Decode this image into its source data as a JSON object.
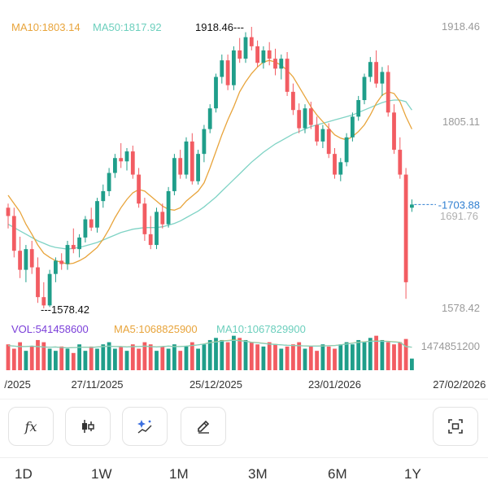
{
  "chart_data": {
    "type": "candlestick",
    "price_range": [
      1578.42,
      1918.46
    ],
    "y_tick_labels": [
      "1918.46",
      "1805.11",
      "1691.76",
      "1578.42"
    ],
    "y_ticks": [
      1918.46,
      1805.11,
      1691.76,
      1578.42
    ],
    "x_tick_labels": [
      "/2025",
      "27/11/2025",
      "25/12/2025",
      "23/01/2026",
      "27/02/2026"
    ],
    "x_tick_index": [
      1,
      15,
      35,
      55,
      76
    ],
    "high_label": "1918.46---",
    "low_label": "---1578.42",
    "last_price_label": "-1703.88",
    "last_price": 1703.88,
    "ma_legend": {
      "ma10": "MA10:1803.14",
      "ma50": "MA50:1817.92"
    },
    "volume_legend": {
      "vol": "VOL:541458600",
      "ma5": "MA5:1068825900",
      "ma10": "MA10:1067829900"
    },
    "volume_axis_label": "1474851200",
    "colors": {
      "up": "#1f9e8a",
      "down": "#f25c62",
      "ma10": "#e8a43b",
      "ma50": "#7fd3c5",
      "vol_legend": "#7b3fd9",
      "axis_text": "#9a9a9a"
    },
    "candles": [
      [
        1700,
        1705,
        1675,
        1690
      ],
      [
        1690,
        1700,
        1640,
        1648
      ],
      [
        1648,
        1665,
        1615,
        1625
      ],
      [
        1625,
        1655,
        1610,
        1650
      ],
      [
        1650,
        1660,
        1620,
        1628
      ],
      [
        1628,
        1640,
        1585,
        1592
      ],
      [
        1592,
        1610,
        1578.42,
        1582
      ],
      [
        1582,
        1625,
        1580,
        1620
      ],
      [
        1620,
        1640,
        1610,
        1636
      ],
      [
        1636,
        1645,
        1625,
        1632
      ],
      [
        1632,
        1660,
        1625,
        1655
      ],
      [
        1655,
        1675,
        1645,
        1650
      ],
      [
        1650,
        1668,
        1640,
        1664
      ],
      [
        1664,
        1690,
        1658,
        1686
      ],
      [
        1686,
        1700,
        1672,
        1676
      ],
      [
        1676,
        1712,
        1670,
        1708
      ],
      [
        1708,
        1728,
        1700,
        1720
      ],
      [
        1720,
        1748,
        1714,
        1742
      ],
      [
        1742,
        1765,
        1736,
        1760
      ],
      [
        1760,
        1778,
        1748,
        1756
      ],
      [
        1756,
        1772,
        1745,
        1768
      ],
      [
        1768,
        1775,
        1735,
        1740
      ],
      [
        1740,
        1748,
        1700,
        1705
      ],
      [
        1705,
        1712,
        1660,
        1668
      ],
      [
        1668,
        1690,
        1650,
        1655
      ],
      [
        1655,
        1700,
        1650,
        1695
      ],
      [
        1695,
        1705,
        1675,
        1680
      ],
      [
        1680,
        1725,
        1676,
        1720
      ],
      [
        1720,
        1765,
        1715,
        1760
      ],
      [
        1760,
        1770,
        1735,
        1740
      ],
      [
        1740,
        1785,
        1735,
        1780
      ],
      [
        1780,
        1790,
        1728,
        1732
      ],
      [
        1732,
        1770,
        1728,
        1765
      ],
      [
        1765,
        1800,
        1755,
        1795
      ],
      [
        1795,
        1825,
        1790,
        1820
      ],
      [
        1820,
        1862,
        1815,
        1858
      ],
      [
        1858,
        1885,
        1850,
        1878
      ],
      [
        1878,
        1885,
        1842,
        1848
      ],
      [
        1848,
        1895,
        1842,
        1890
      ],
      [
        1890,
        1905,
        1875,
        1880
      ],
      [
        1880,
        1912,
        1875,
        1906
      ],
      [
        1906,
        1918.46,
        1890,
        1895
      ],
      [
        1895,
        1902,
        1870,
        1875
      ],
      [
        1875,
        1895,
        1868,
        1890
      ],
      [
        1890,
        1900,
        1872,
        1880
      ],
      [
        1880,
        1892,
        1860,
        1868
      ],
      [
        1868,
        1885,
        1855,
        1880
      ],
      [
        1880,
        1888,
        1835,
        1840
      ],
      [
        1840,
        1850,
        1812,
        1818
      ],
      [
        1818,
        1826,
        1790,
        1796
      ],
      [
        1796,
        1825,
        1790,
        1820
      ],
      [
        1820,
        1828,
        1795,
        1800
      ],
      [
        1800,
        1810,
        1775,
        1780
      ],
      [
        1780,
        1800,
        1772,
        1795
      ],
      [
        1795,
        1802,
        1760,
        1765
      ],
      [
        1765,
        1772,
        1735,
        1740
      ],
      [
        1740,
        1760,
        1732,
        1755
      ],
      [
        1755,
        1790,
        1750,
        1785
      ],
      [
        1785,
        1815,
        1780,
        1810
      ],
      [
        1810,
        1835,
        1805,
        1830
      ],
      [
        1830,
        1862,
        1825,
        1858
      ],
      [
        1858,
        1882,
        1852,
        1876
      ],
      [
        1876,
        1890,
        1845,
        1850
      ],
      [
        1850,
        1870,
        1835,
        1864
      ],
      [
        1864,
        1872,
        1810,
        1815
      ],
      [
        1815,
        1825,
        1765,
        1770
      ],
      [
        1770,
        1785,
        1735,
        1740
      ],
      [
        1740,
        1748,
        1590,
        1610
      ],
      [
        1700,
        1710,
        1695,
        1703.88
      ]
    ],
    "ma10": [
      1715,
      1705,
      1695,
      1680,
      1668,
      1655,
      1645,
      1640,
      1636,
      1634,
      1632,
      1633,
      1636,
      1640,
      1646,
      1652,
      1662,
      1674,
      1688,
      1700,
      1710,
      1718,
      1722,
      1720,
      1714,
      1708,
      1702,
      1698,
      1697,
      1700,
      1708,
      1714,
      1720,
      1730,
      1748,
      1768,
      1788,
      1806,
      1822,
      1840,
      1852,
      1862,
      1870,
      1876,
      1878,
      1876,
      1872,
      1866,
      1858,
      1846,
      1834,
      1822,
      1812,
      1804,
      1796,
      1788,
      1784,
      1782,
      1786,
      1792,
      1800,
      1812,
      1826,
      1836,
      1840,
      1838,
      1828,
      1810,
      1795
    ],
    "ma50": [
      1680,
      1676,
      1672,
      1668,
      1664,
      1660,
      1657,
      1654,
      1652,
      1651,
      1650,
      1651,
      1652,
      1654,
      1656,
      1658,
      1661,
      1664,
      1667,
      1670,
      1672,
      1674,
      1675,
      1676,
      1676,
      1676,
      1677,
      1679,
      1681,
      1684,
      1688,
      1692,
      1696,
      1701,
      1707,
      1713,
      1720,
      1727,
      1734,
      1741,
      1748,
      1755,
      1761,
      1767,
      1772,
      1777,
      1781,
      1785,
      1789,
      1792,
      1795,
      1798,
      1800,
      1802,
      1804,
      1806,
      1808,
      1810,
      1812,
      1815,
      1818,
      1821,
      1824,
      1827,
      1829,
      1830,
      1830,
      1828,
      1817.92
    ],
    "volumes": [
      1.2,
      1.0,
      1.3,
      0.9,
      1.1,
      1.4,
      1.3,
      1.0,
      0.9,
      1.1,
      1.0,
      0.8,
      1.2,
      0.9,
      1.1,
      1.0,
      1.2,
      1.3,
      1.0,
      1.1,
      0.9,
      1.2,
      1.0,
      1.3,
      1.2,
      0.9,
      1.1,
      1.0,
      1.2,
      0.9,
      1.1,
      1.3,
      1.0,
      1.2,
      1.4,
      1.5,
      1.4,
      1.3,
      1.6,
      1.5,
      1.4,
      1.3,
      1.2,
      1.1,
      1.3,
      1.2,
      1.0,
      1.1,
      1.2,
      1.3,
      1.0,
      1.1,
      0.9,
      1.2,
      1.1,
      1.0,
      1.2,
      1.3,
      1.2,
      1.4,
      1.3,
      1.5,
      1.6,
      1.4,
      1.3,
      1.2,
      1.3,
      1.45,
      0.54
    ],
    "vol_ma": [
      1.15,
      1.12,
      1.1,
      1.1,
      1.12,
      1.1,
      1.08,
      1.07,
      1.08,
      1.05,
      1.04,
      1.05,
      1.06,
      1.07,
      1.06,
      1.08,
      1.1,
      1.12,
      1.1,
      1.1,
      1.08,
      1.1,
      1.1,
      1.12,
      1.1,
      1.08,
      1.1,
      1.12,
      1.1,
      1.1,
      1.12,
      1.15,
      1.18,
      1.22,
      1.28,
      1.32,
      1.36,
      1.38,
      1.4,
      1.38,
      1.35,
      1.3,
      1.28,
      1.25,
      1.22,
      1.2,
      1.18,
      1.16,
      1.15,
      1.14,
      1.13,
      1.12,
      1.12,
      1.13,
      1.14,
      1.15,
      1.18,
      1.22,
      1.26,
      1.3,
      1.32,
      1.35,
      1.36,
      1.35,
      1.34,
      1.32,
      1.3,
      1.1,
      1.07
    ]
  },
  "toolbar": {
    "buttons": [
      {
        "name": "formula-icon"
      },
      {
        "name": "candlestick-icon"
      },
      {
        "name": "magic-draw-icon"
      },
      {
        "name": "pencil-icon"
      },
      {
        "name": "screenshot-frame-icon"
      }
    ],
    "formula_glyph": "fx"
  },
  "tabs": [
    "1D",
    "1W",
    "1M",
    "3M",
    "6M",
    "1Y"
  ]
}
